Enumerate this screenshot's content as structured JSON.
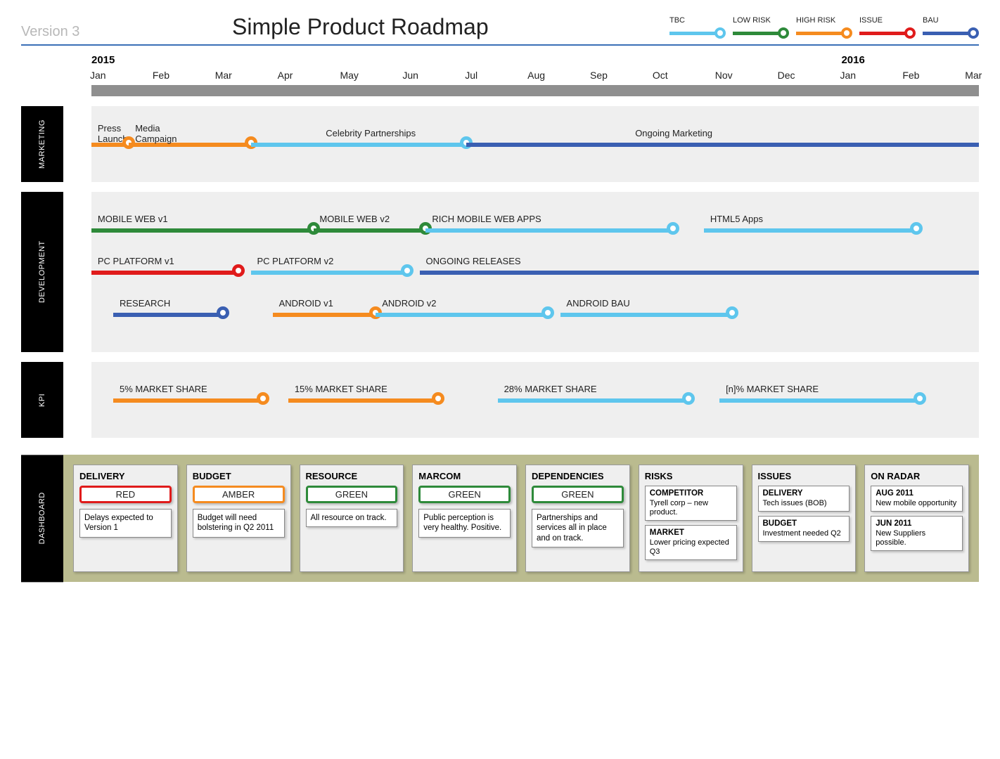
{
  "meta": {
    "version_label": "Version 3",
    "title": "Simple Product Roadmap"
  },
  "colors": {
    "tbc": "#5ec6ed",
    "low_risk": "#2e8a3a",
    "high_risk": "#f58b1f",
    "issue": "#e01b1b",
    "bau": "#3a5fb2",
    "lane_bg": "#efefef",
    "axis_bar": "#8f8f8f",
    "dash_bg": "#babb8f",
    "header_rule": "#3a6fb7"
  },
  "legend": [
    {
      "key": "tbc",
      "label": "TBC",
      "color": "#5ec6ed"
    },
    {
      "key": "low_risk",
      "label": "LOW RISK",
      "color": "#2e8a3a"
    },
    {
      "key": "high_risk",
      "label": "HIGH RISK",
      "color": "#f58b1f"
    },
    {
      "key": "issue",
      "label": "ISSUE",
      "color": "#e01b1b"
    },
    {
      "key": "bau",
      "label": "BAU",
      "color": "#3a5fb2"
    }
  ],
  "axis": {
    "months": [
      "Jan",
      "Feb",
      "Mar",
      "Apr",
      "May",
      "Jun",
      "Jul",
      "Aug",
      "Sep",
      "Oct",
      "Nov",
      "Dec",
      "Jan",
      "Feb",
      "Mar"
    ],
    "year_markers": [
      {
        "label": "2015",
        "at_index": 0
      },
      {
        "label": "2016",
        "at_index": 12
      }
    ],
    "total_months": 15
  },
  "lanes": [
    {
      "name": "MARKETING",
      "tracks": [
        {
          "segments": [
            {
              "label": "Press Launch",
              "label_two_line": true,
              "start": 0.0,
              "end": 0.6,
              "color": "#f58b1f",
              "node_at_end": true
            },
            {
              "label": "Media Campaign",
              "label_two_line": true,
              "start": 0.6,
              "end": 2.55,
              "color": "#f58b1f",
              "node_at_end": true
            },
            {
              "label": "Celebrity Partnerships",
              "start": 2.55,
              "end": 6.0,
              "color": "#5ec6ed",
              "node_at_end": true,
              "label_offset": 1.2
            },
            {
              "label": "Ongoing Marketing",
              "start": 6.0,
              "end": 14.2,
              "color": "#3a5fb2",
              "node_at_end": false,
              "label_offset": 2.7
            }
          ]
        }
      ]
    },
    {
      "name": "DEVELOPMENT",
      "tracks": [
        {
          "segments": [
            {
              "label": "MOBILE WEB v1",
              "start": 0.0,
              "end": 3.55,
              "color": "#2e8a3a",
              "node_at_end": true
            },
            {
              "label": "MOBILE WEB v2",
              "start": 3.55,
              "end": 5.35,
              "color": "#2e8a3a",
              "node_at_end": true
            },
            {
              "label": "RICH MOBILE WEB APPS",
              "start": 5.35,
              "end": 9.3,
              "color": "#5ec6ed",
              "node_at_end": true
            },
            {
              "label": "HTML5 Apps",
              "start": 9.8,
              "end": 13.2,
              "color": "#5ec6ed",
              "node_at_end": true
            }
          ]
        },
        {
          "segments": [
            {
              "label": "PC PLATFORM v1",
              "start": 0.0,
              "end": 2.35,
              "color": "#e01b1b",
              "node_at_end": true
            },
            {
              "label": "PC PLATFORM v2",
              "start": 2.55,
              "end": 5.05,
              "color": "#5ec6ed",
              "node_at_end": true
            },
            {
              "label": "ONGOING RELEASES",
              "start": 5.25,
              "end": 14.2,
              "color": "#3a5fb2",
              "node_at_end": false
            }
          ]
        },
        {
          "segments": [
            {
              "label": "RESEARCH",
              "start": 0.35,
              "end": 2.1,
              "color": "#3a5fb2",
              "node_at_end": true
            },
            {
              "label": "ANDROID v1",
              "start": 2.9,
              "end": 4.55,
              "color": "#f58b1f",
              "node_at_end": true
            },
            {
              "label": "ANDROID v2",
              "start": 4.55,
              "end": 7.3,
              "color": "#5ec6ed",
              "node_at_end": true
            },
            {
              "label": "ANDROID BAU",
              "start": 7.5,
              "end": 10.25,
              "color": "#5ec6ed",
              "node_at_end": true
            }
          ]
        }
      ]
    },
    {
      "name": "KPI",
      "tracks": [
        {
          "segments": [
            {
              "label": "5% MARKET SHARE",
              "start": 0.35,
              "end": 2.75,
              "color": "#f58b1f",
              "node_at_end": true
            },
            {
              "label": "15% MARKET SHARE",
              "start": 3.15,
              "end": 5.55,
              "color": "#f58b1f",
              "node_at_end": true
            },
            {
              "label": "28% MARKET SHARE",
              "start": 6.5,
              "end": 9.55,
              "color": "#5ec6ed",
              "node_at_end": true
            },
            {
              "label": "[n]% MARKET SHARE",
              "start": 10.05,
              "end": 13.25,
              "color": "#5ec6ed",
              "node_at_end": true
            }
          ]
        }
      ]
    }
  ],
  "dashboard": {
    "label": "DASHBOARD",
    "cards": [
      {
        "title": "DELIVERY",
        "status": "RED",
        "status_color": "#e01b1b",
        "note": "Delays expected to Version 1"
      },
      {
        "title": "BUDGET",
        "status": "AMBER",
        "status_color": "#f58b1f",
        "note": "Budget will need bolstering in Q2 2011"
      },
      {
        "title": "RESOURCE",
        "status": "GREEN",
        "status_color": "#2e8a3a",
        "note": "All resource on track."
      },
      {
        "title": "MARCOM",
        "status": "GREEN",
        "status_color": "#2e8a3a",
        "note": "Public perception is very healthy. Positive."
      },
      {
        "title": "DEPENDENCIES",
        "status": "GREEN",
        "status_color": "#2e8a3a",
        "note": "Partnerships and services all in place and on track."
      },
      {
        "title": "RISKS",
        "items": [
          {
            "h": "COMPETITOR",
            "t": "Tyrell corp – new product."
          },
          {
            "h": "MARKET",
            "t": "Lower pricing expected Q3"
          }
        ]
      },
      {
        "title": "ISSUES",
        "items": [
          {
            "h": "DELIVERY",
            "t": "Tech issues (BOB)"
          },
          {
            "h": "BUDGET",
            "t": "Investment needed Q2"
          }
        ]
      },
      {
        "title": "ON RADAR",
        "items": [
          {
            "h": "AUG 2011",
            "t": "New mobile opportunity"
          },
          {
            "h": "JUN 2011",
            "t": "New Suppliers possible."
          }
        ]
      }
    ]
  }
}
